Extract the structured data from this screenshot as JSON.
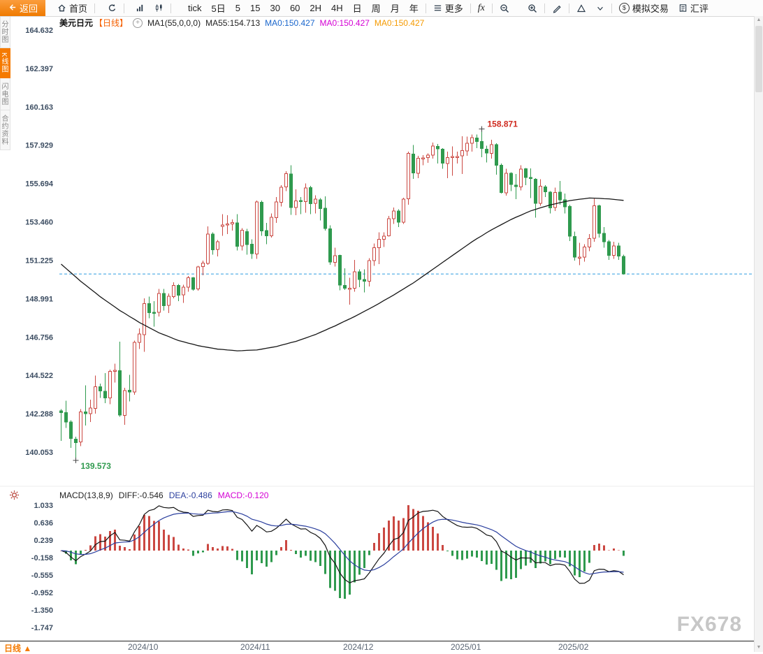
{
  "toolbar": {
    "back_label": "返回",
    "home_label": "首页",
    "tick_label": "tick",
    "periods": [
      "5日",
      "5",
      "15",
      "30",
      "60",
      "2H",
      "4H",
      "日",
      "周",
      "月",
      "年"
    ],
    "active_period": "日",
    "more_label": "更多",
    "fx_label": "fx",
    "sim_icon": "$",
    "sim_label": "模拟交易",
    "fx_review_label": "汇评"
  },
  "sidebar": {
    "items": [
      {
        "label": "分时图",
        "name": "timeshare-chart",
        "active": false
      },
      {
        "label": "K线图",
        "name": "kline-chart",
        "active": true
      },
      {
        "label": "闪电图",
        "name": "lightning-chart",
        "active": false
      },
      {
        "label": "合约资料",
        "name": "contract-info",
        "active": false
      }
    ]
  },
  "chart_header": {
    "symbol": "美元日元",
    "period_tag": "【日线】",
    "expand_icon": "+",
    "ma_params": "MA1(55,0,0,0)",
    "ma55_label": "MA55:154.713",
    "ma0_blue": "MA0:150.427",
    "ma0_magenta": "MA0:150.427",
    "ma0_orange": "MA0:150.427"
  },
  "macd_header": {
    "params": "MACD(13,8,9)",
    "diff": "DIFF:-0.546",
    "dea": "DEA:-0.486",
    "macd": "MACD:-0.120"
  },
  "bottom_bar": {
    "period_tab": "日线",
    "arrow": "▲"
  },
  "scrollbar": {
    "up": "▲",
    "down": "▼"
  },
  "watermark": "FX678",
  "colors": {
    "up": "#cb4842",
    "down": "#2f9a4e",
    "accent": "#f57a00",
    "ma_line": "#151515",
    "dashed_line": "#2e9ce0",
    "diff_line": "#141414",
    "dea_line": "#2b3f9e",
    "blue_text": "#1a66cc",
    "magenta_text": "#d400d4",
    "orange_text": "#f59a00",
    "axis_text": "#3b4c61"
  },
  "chart_data": {
    "type": "candlestick",
    "symbol": "美元日元",
    "period": "日线",
    "y_axis_main": [
      164.632,
      162.397,
      160.163,
      157.929,
      155.694,
      153.46,
      151.225,
      148.991,
      146.756,
      144.522,
      142.288,
      140.053
    ],
    "y_axis_macd": [
      1.033,
      0.636,
      0.239,
      -0.158,
      -0.555,
      -0.952,
      -1.35,
      -1.747
    ],
    "x_ticks": [
      {
        "label": "2024/10",
        "index": 14
      },
      {
        "label": "2024/11",
        "index": 37
      },
      {
        "label": "2024/12",
        "index": 58
      },
      {
        "label": "2025/01",
        "index": 80
      },
      {
        "label": "2025/02",
        "index": 102
      }
    ],
    "last_price": 150.427,
    "high_annotation": {
      "label": "158.871",
      "value": 158.87,
      "index": 86
    },
    "low_annotation": {
      "label": "139.573",
      "value": 139.57,
      "index": 3
    },
    "macd": {
      "fast": 8,
      "slow": 13,
      "signal": 9
    },
    "candles": [
      [
        142.45,
        142.55,
        140.71,
        142.35
      ],
      [
        142.35,
        143.05,
        141.45,
        141.8
      ],
      [
        141.8,
        141.9,
        140.3,
        140.85
      ],
      [
        140.8,
        140.95,
        139.57,
        140.61
      ],
      [
        140.65,
        142.55,
        140.4,
        142.4
      ],
      [
        142.4,
        143.95,
        141.6,
        142.29
      ],
      [
        142.3,
        143.1,
        141.8,
        142.62
      ],
      [
        142.6,
        144.5,
        142.3,
        143.85
      ],
      [
        143.85,
        144.05,
        143.2,
        143.61
      ],
      [
        143.6,
        144.65,
        142.9,
        143.21
      ],
      [
        143.2,
        144.85,
        142.85,
        144.75
      ],
      [
        144.75,
        145.2,
        144.1,
        144.81
      ],
      [
        144.8,
        146.49,
        142.1,
        142.21
      ],
      [
        142.2,
        143.8,
        141.65,
        143.63
      ],
      [
        143.65,
        144.55,
        143.0,
        143.56
      ],
      [
        143.55,
        146.55,
        143.4,
        146.45
      ],
      [
        146.45,
        147.25,
        146.05,
        146.93
      ],
      [
        146.9,
        149.0,
        145.9,
        148.7
      ],
      [
        148.7,
        149.1,
        147.85,
        148.18
      ],
      [
        148.2,
        148.85,
        147.35,
        148.18
      ],
      [
        148.2,
        149.55,
        147.95,
        149.3
      ],
      [
        149.3,
        149.55,
        148.3,
        148.58
      ],
      [
        148.6,
        149.3,
        148.15,
        149.13
      ],
      [
        149.1,
        149.95,
        149.0,
        149.76
      ],
      [
        149.75,
        149.85,
        148.85,
        149.19
      ],
      [
        149.2,
        149.8,
        148.75,
        149.66
      ],
      [
        149.65,
        150.3,
        149.4,
        150.21
      ],
      [
        150.2,
        150.25,
        149.45,
        149.53
      ],
      [
        149.55,
        150.9,
        149.45,
        150.83
      ],
      [
        150.85,
        151.2,
        150.35,
        151.07
      ],
      [
        151.05,
        153.19,
        150.95,
        152.76
      ],
      [
        152.75,
        152.85,
        151.55,
        151.83
      ],
      [
        151.85,
        152.4,
        151.45,
        152.31
      ],
      [
        153.2,
        153.9,
        152.65,
        153.27
      ],
      [
        153.3,
        153.85,
        152.75,
        153.35
      ],
      [
        153.35,
        153.6,
        152.95,
        153.42
      ],
      [
        153.4,
        153.9,
        151.8,
        152.03
      ],
      [
        152.05,
        153.1,
        151.8,
        152.98
      ],
      [
        152.9,
        153.05,
        151.55,
        152.13
      ],
      [
        152.15,
        152.45,
        151.3,
        151.62
      ],
      [
        151.6,
        154.7,
        151.3,
        154.63
      ],
      [
        154.6,
        154.7,
        152.65,
        152.94
      ],
      [
        152.95,
        153.4,
        152.15,
        152.64
      ],
      [
        152.65,
        153.95,
        152.55,
        153.72
      ],
      [
        153.7,
        154.9,
        153.4,
        154.62
      ],
      [
        154.6,
        155.6,
        154.35,
        155.48
      ],
      [
        155.5,
        156.42,
        155.25,
        156.27
      ],
      [
        156.25,
        156.75,
        153.86,
        154.3
      ],
      [
        154.3,
        155.35,
        153.85,
        154.68
      ],
      [
        154.7,
        154.9,
        153.9,
        154.67
      ],
      [
        154.65,
        155.7,
        154.0,
        155.43
      ],
      [
        155.45,
        155.55,
        153.9,
        154.53
      ],
      [
        154.55,
        155.0,
        153.95,
        154.78
      ],
      [
        154.75,
        154.85,
        153.55,
        154.23
      ],
      [
        154.25,
        154.95,
        152.95,
        153.07
      ],
      [
        153.05,
        153.25,
        150.95,
        151.12
      ],
      [
        151.1,
        151.95,
        150.85,
        151.48
      ],
      [
        151.5,
        151.55,
        149.47,
        149.77
      ],
      [
        149.75,
        150.75,
        149.5,
        149.6
      ],
      [
        149.6,
        150.2,
        148.65,
        149.6
      ],
      [
        149.6,
        151.25,
        149.4,
        150.56
      ],
      [
        150.55,
        150.7,
        149.65,
        150.1
      ],
      [
        150.1,
        150.7,
        149.35,
        150.0
      ],
      [
        150.0,
        151.35,
        149.7,
        151.21
      ],
      [
        151.2,
        152.2,
        150.9,
        151.95
      ],
      [
        151.95,
        152.85,
        151.0,
        152.45
      ],
      [
        152.45,
        152.85,
        152.0,
        152.63
      ],
      [
        152.65,
        153.8,
        152.6,
        153.65
      ],
      [
        153.65,
        154.3,
        153.35,
        154.1
      ],
      [
        154.1,
        154.2,
        153.15,
        153.45
      ],
      [
        153.45,
        154.87,
        153.35,
        154.79
      ],
      [
        154.8,
        157.55,
        154.45,
        157.44
      ],
      [
        157.4,
        157.93,
        155.96,
        156.31
      ],
      [
        156.3,
        157.3,
        156.0,
        157.17
      ],
      [
        157.15,
        157.35,
        156.75,
        157.18
      ],
      [
        157.2,
        157.45,
        156.9,
        157.34
      ],
      [
        157.35,
        158.08,
        157.15,
        157.87
      ],
      [
        157.85,
        158.0,
        156.85,
        157.71
      ],
      [
        157.7,
        157.75,
        156.55,
        156.88
      ],
      [
        156.85,
        157.55,
        156.0,
        157.2
      ],
      [
        157.2,
        157.85,
        156.15,
        157.26
      ],
      [
        157.25,
        157.55,
        156.85,
        157.27
      ],
      [
        157.3,
        158.45,
        156.25,
        157.62
      ],
      [
        157.6,
        158.42,
        157.3,
        158.05
      ],
      [
        158.05,
        158.55,
        157.55,
        158.36
      ],
      [
        158.35,
        158.55,
        157.75,
        158.15
      ],
      [
        158.15,
        158.87,
        157.23,
        157.73
      ],
      [
        157.7,
        157.9,
        156.93,
        157.47
      ],
      [
        157.45,
        158.25,
        157.15,
        157.96
      ],
      [
        157.95,
        158.05,
        156.2,
        156.75
      ],
      [
        156.75,
        156.85,
        155.1,
        155.17
      ],
      [
        155.15,
        156.55,
        154.98,
        156.3
      ],
      [
        156.3,
        156.35,
        155.25,
        155.63
      ],
      [
        155.6,
        156.25,
        154.78,
        155.51
      ],
      [
        155.5,
        156.75,
        155.3,
        156.54
      ],
      [
        156.55,
        156.6,
        155.6,
        156.05
      ],
      [
        156.05,
        156.57,
        154.84,
        155.98
      ],
      [
        155.95,
        156.0,
        153.71,
        154.54
      ],
      [
        154.55,
        155.95,
        154.4,
        155.53
      ],
      [
        155.5,
        155.6,
        154.9,
        155.22
      ],
      [
        155.2,
        155.25,
        153.95,
        154.28
      ],
      [
        154.3,
        155.45,
        154.1,
        155.18
      ],
      [
        155.2,
        155.85,
        154.45,
        154.75
      ],
      [
        154.75,
        155.1,
        153.95,
        154.34
      ],
      [
        154.35,
        154.45,
        152.35,
        152.62
      ],
      [
        152.6,
        152.9,
        151.2,
        151.41
      ],
      [
        151.4,
        152.25,
        150.93,
        151.41
      ],
      [
        151.4,
        152.15,
        151.15,
        151.99
      ],
      [
        152.0,
        152.75,
        151.75,
        152.48
      ],
      [
        152.5,
        154.8,
        152.3,
        154.4
      ],
      [
        154.4,
        154.45,
        152.55,
        152.8
      ],
      [
        152.8,
        153.15,
        151.95,
        152.31
      ],
      [
        152.3,
        152.4,
        151.25,
        151.51
      ],
      [
        151.5,
        152.3,
        151.3,
        152.06
      ],
      [
        152.05,
        152.25,
        151.25,
        151.47
      ],
      [
        151.45,
        151.55,
        150.38,
        150.43
      ]
    ],
    "ma55": [
      151.0,
      150.75,
      150.5,
      150.25,
      150.0,
      149.78,
      149.55,
      149.33,
      149.1,
      148.9,
      148.7,
      148.5,
      148.3,
      148.13,
      147.95,
      147.78,
      147.6,
      147.45,
      147.3,
      147.15,
      147.0,
      146.89,
      146.78,
      146.66,
      146.55,
      146.48,
      146.4,
      146.33,
      146.25,
      146.2,
      146.15,
      146.1,
      146.05,
      146.03,
      146.0,
      145.98,
      145.95,
      145.96,
      145.98,
      145.99,
      146.0,
      146.05,
      146.1,
      146.15,
      146.2,
      146.28,
      146.35,
      146.43,
      146.5,
      146.6,
      146.7,
      146.8,
      146.9,
      147.03,
      147.15,
      147.28,
      147.4,
      147.54,
      147.68,
      147.81,
      147.95,
      148.1,
      148.25,
      148.4,
      148.55,
      148.71,
      148.88,
      149.04,
      149.2,
      149.38,
      149.55,
      149.73,
      149.9,
      150.1,
      150.3,
      150.5,
      150.7,
      150.9,
      151.1,
      151.3,
      151.5,
      151.7,
      151.9,
      152.1,
      152.3,
      152.48,
      152.65,
      152.83,
      153.0,
      153.15,
      153.3,
      153.45,
      153.6,
      153.73,
      153.85,
      153.98,
      154.1,
      154.19,
      154.28,
      154.36,
      154.45,
      154.51,
      154.58,
      154.64,
      154.7,
      154.74,
      154.78,
      154.81,
      154.85,
      154.84,
      154.83,
      154.81,
      154.8,
      154.77,
      154.74,
      154.713
    ]
  }
}
